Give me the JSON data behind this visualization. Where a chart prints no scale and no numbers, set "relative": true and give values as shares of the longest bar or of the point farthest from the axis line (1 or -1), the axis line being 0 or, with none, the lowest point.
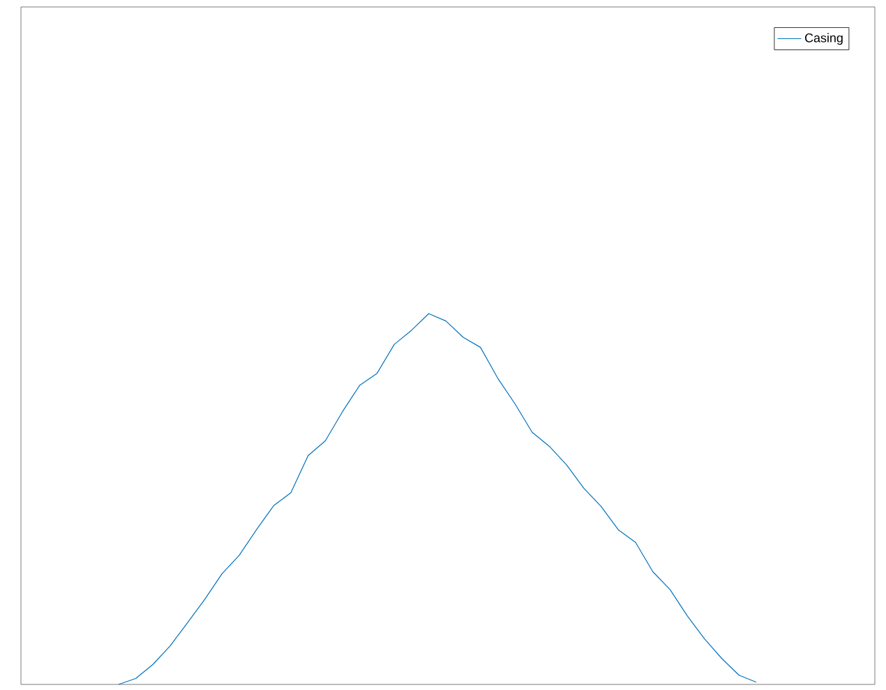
{
  "chart_data": {
    "type": "line",
    "relative": true,
    "legend": "top right",
    "categories": [
      null,
      null,
      null,
      null,
      null,
      null,
      null,
      null,
      null,
      null,
      null,
      null,
      null,
      null,
      null,
      null,
      null,
      null,
      null,
      null,
      null,
      null,
      null,
      null,
      null,
      null,
      null,
      null,
      null,
      null,
      null,
      null,
      null,
      null,
      null,
      null,
      null,
      null
    ],
    "series": [
      {
        "name": "Casing",
        "color": "#0072bd",
        "values": [
          0,
          0.016,
          0.054,
          0.104,
          0.166,
          0.229,
          0.298,
          0.348,
          0.417,
          0.482,
          0.517,
          0.617,
          0.657,
          0.736,
          0.807,
          0.839,
          0.917,
          0.955,
          1,
          0.98,
          0.936,
          0.909,
          0.826,
          0.757,
          0.68,
          0.642,
          0.592,
          0.529,
          0.48,
          0.417,
          0.383,
          0.304,
          0.256,
          0.185,
          0.123,
          0.07,
          0.025,
          0.006
        ]
      }
    ]
  }
}
